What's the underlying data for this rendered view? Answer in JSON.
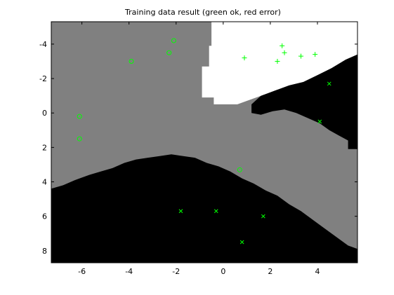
{
  "chart_data": {
    "type": "scatter",
    "title": "Training data result (green ok, red error)",
    "xlabel": "",
    "ylabel": "",
    "xlim": [
      -7.3,
      5.7
    ],
    "ylim": [
      8.7,
      -5.3
    ],
    "y_axis_reversed": true,
    "grid": false,
    "x_ticks": [
      -6,
      -4,
      -2,
      0,
      2,
      4
    ],
    "y_ticks": [
      -4,
      -2,
      0,
      2,
      4,
      6,
      8
    ],
    "colors": {
      "white_region": "#ffffff",
      "gray_region": "#808080",
      "black_region": "#000000",
      "marker_ok": "#00ff00",
      "marker_error": "#ff0000"
    },
    "regions": [
      {
        "fill": "white_region",
        "outline": [
          [
            -0.5,
            -5.3
          ],
          [
            5.7,
            -5.3
          ],
          [
            5.7,
            -3.4
          ],
          [
            5.2,
            -3.1
          ],
          [
            4.6,
            -2.6
          ],
          [
            4.0,
            -2.2
          ],
          [
            3.4,
            -1.8
          ],
          [
            2.8,
            -1.6
          ],
          [
            2.2,
            -1.3
          ],
          [
            1.6,
            -1.0
          ],
          [
            1.0,
            -0.7
          ],
          [
            0.6,
            -0.5
          ],
          [
            -0.4,
            -0.5
          ],
          [
            -0.4,
            -0.9
          ],
          [
            -0.9,
            -0.9
          ],
          [
            -0.9,
            -2.7
          ],
          [
            -0.6,
            -2.7
          ],
          [
            -0.6,
            -3.9
          ],
          [
            -0.5,
            -3.9
          ]
        ]
      },
      {
        "fill": "black_region",
        "outline": [
          [
            5.7,
            -3.4
          ],
          [
            5.7,
            2.1
          ],
          [
            5.3,
            2.1
          ],
          [
            5.3,
            1.6
          ],
          [
            4.9,
            1.3
          ],
          [
            4.5,
            1.0
          ],
          [
            4.1,
            0.6
          ],
          [
            3.6,
            0.3
          ],
          [
            3.1,
            0.0
          ],
          [
            2.6,
            -0.2
          ],
          [
            2.1,
            -0.1
          ],
          [
            1.6,
            0.1
          ],
          [
            1.2,
            0.0
          ],
          [
            1.2,
            -0.5
          ],
          [
            1.6,
            -1.0
          ],
          [
            2.2,
            -1.3
          ],
          [
            2.8,
            -1.6
          ],
          [
            3.4,
            -1.8
          ],
          [
            4.0,
            -2.2
          ],
          [
            4.6,
            -2.6
          ],
          [
            5.2,
            -3.1
          ]
        ]
      },
      {
        "fill": "black_region",
        "outline": [
          [
            -7.3,
            4.4
          ],
          [
            -6.8,
            4.2
          ],
          [
            -6.3,
            3.9
          ],
          [
            -5.7,
            3.6
          ],
          [
            -5.2,
            3.4
          ],
          [
            -4.7,
            3.2
          ],
          [
            -4.2,
            2.9
          ],
          [
            -3.7,
            2.7
          ],
          [
            -3.2,
            2.6
          ],
          [
            -2.7,
            2.5
          ],
          [
            -2.2,
            2.4
          ],
          [
            -1.7,
            2.5
          ],
          [
            -1.2,
            2.6
          ],
          [
            -0.7,
            2.9
          ],
          [
            -0.2,
            3.1
          ],
          [
            0.3,
            3.4
          ],
          [
            0.8,
            3.8
          ],
          [
            1.3,
            4.1
          ],
          [
            1.8,
            4.5
          ],
          [
            2.3,
            4.8
          ],
          [
            2.8,
            5.3
          ],
          [
            3.3,
            5.7
          ],
          [
            3.8,
            6.2
          ],
          [
            4.3,
            6.7
          ],
          [
            4.8,
            7.2
          ],
          [
            5.3,
            7.7
          ],
          [
            5.7,
            7.9
          ],
          [
            5.7,
            8.7
          ],
          [
            -7.3,
            8.7
          ]
        ]
      }
    ],
    "series": [
      {
        "marker": "o",
        "color": "marker_ok",
        "points": [
          [
            -2.1,
            -4.2
          ],
          [
            -2.3,
            -3.5
          ],
          [
            -3.9,
            -3.0
          ],
          [
            -6.1,
            0.2
          ],
          [
            -6.1,
            1.5
          ],
          [
            0.7,
            3.3
          ]
        ]
      },
      {
        "marker": "+",
        "color": "marker_ok",
        "points": [
          [
            2.5,
            -3.9
          ],
          [
            2.6,
            -3.5
          ],
          [
            3.3,
            -3.3
          ],
          [
            3.9,
            -3.4
          ],
          [
            0.9,
            -3.2
          ],
          [
            2.3,
            -3.0
          ]
        ]
      },
      {
        "marker": "x",
        "color": "marker_ok",
        "points": [
          [
            4.5,
            -1.7
          ],
          [
            4.1,
            0.5
          ],
          [
            -1.8,
            5.7
          ],
          [
            -0.3,
            5.7
          ],
          [
            1.7,
            6.0
          ],
          [
            0.8,
            7.5
          ]
        ]
      }
    ]
  }
}
